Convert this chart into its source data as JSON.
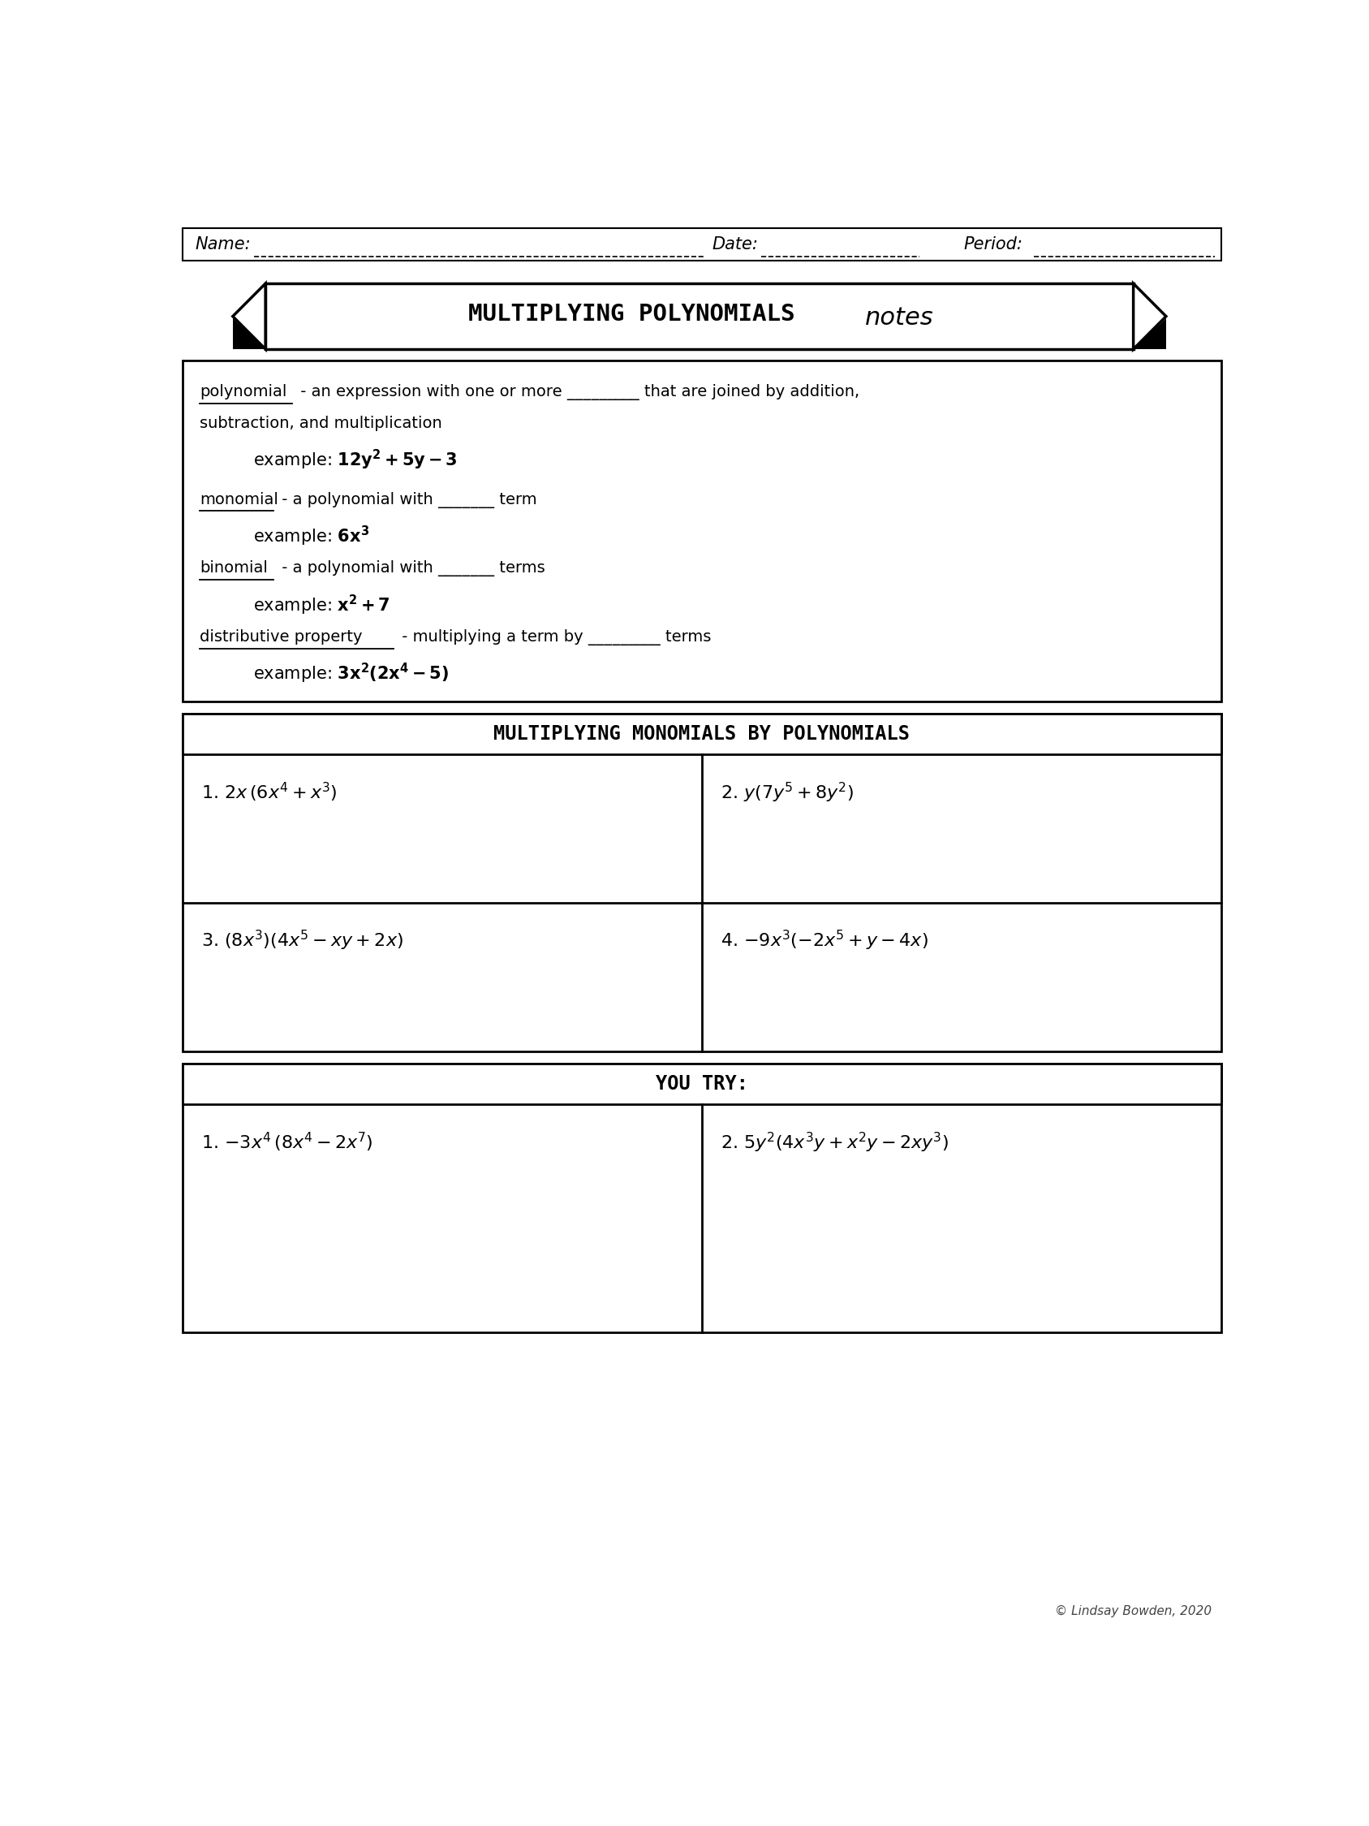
{
  "bg_color": "#ffffff",
  "name_label": "Name:",
  "date_label": "Date:",
  "period_label": "Period:",
  "title_main": "MULTIPLYING POLYNOMIALS ",
  "title_script": "notes",
  "section2_title": "MULTIPLYING MONOMIALS BY POLYNOMIALS",
  "section2_problems": [
    "1. $2x\\,(6x^4 + x^3)$",
    "2. $y(7y^5 + 8y^2)$",
    "3. $(8x^3)(4x^5 - xy + 2x)$",
    "4. $-9x^3(-2x^5 + y - 4x)$"
  ],
  "section3_title": "YOU TRY:",
  "section3_problems": [
    "1. $-3x^4\\,(8x^4 - 2x^7)$",
    "2. $5y^2(4x^3y + x^2y - 2xy^3)$"
  ],
  "footer": "© Lindsay Bowden, 2020"
}
